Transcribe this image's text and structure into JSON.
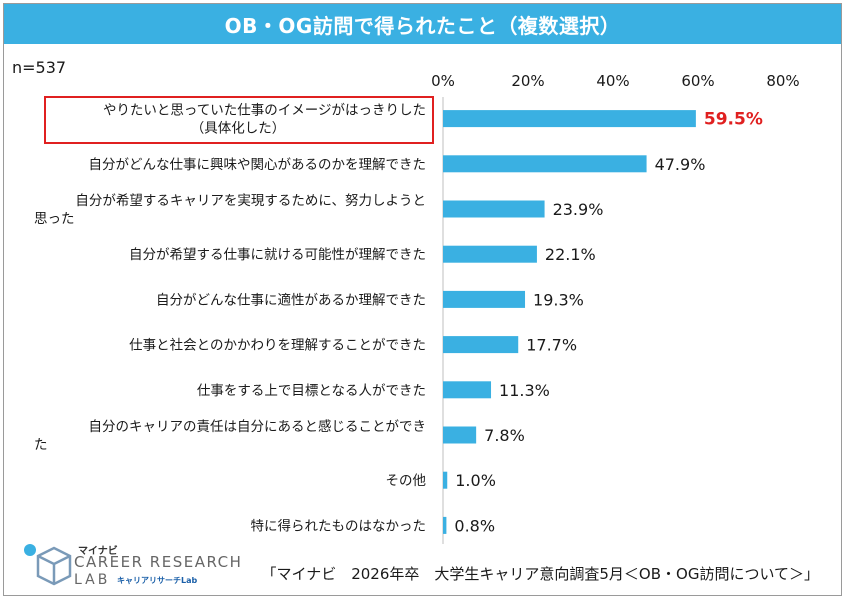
{
  "header": {
    "title": "OB・OG訪問で得られたこと（複数選択）"
  },
  "sample": {
    "label": "n=537"
  },
  "source": {
    "text": "「マイナビ　2026年卒　大学生キャリア意向調査5月＜OB・OG訪問について＞」"
  },
  "logo": {
    "brand": "マイナビ",
    "main": "CAREER RESEARCH",
    "lab": "LAB",
    "sub": "キャリアリサーチLab"
  },
  "colors": {
    "bar": "#3ab0e2",
    "highlight": "#e02020",
    "title_bg": "#3ab0e2"
  },
  "chart_data": {
    "type": "bar",
    "orientation": "horizontal",
    "title": "OB・OG訪問で得られたこと（複数選択）",
    "xlim": [
      0,
      80
    ],
    "ticks": [
      "0%",
      "20%",
      "40%",
      "60%",
      "80%"
    ],
    "tick_values": [
      0,
      20,
      40,
      60,
      80
    ],
    "unit": "%",
    "highlight_index": 0,
    "categories": [
      [
        "やりたいと思っていた仕事のイメージがはっきりした",
        "（具体化した）"
      ],
      [
        "自分がどんな仕事に興味や関心があるのかを理解できた"
      ],
      [
        "自分が希望するキャリアを実現するために、努力しようと",
        "思った"
      ],
      [
        "自分が希望する仕事に就ける可能性が理解できた"
      ],
      [
        "自分がどんな仕事に適性があるか理解できた"
      ],
      [
        "仕事と社会とのかかわりを理解することができた"
      ],
      [
        "仕事をする上で目標となる人ができた"
      ],
      [
        "自分のキャリアの責任は自分にあると感じることができ",
        "た"
      ],
      [
        "その他"
      ],
      [
        "特に得られたものはなかった"
      ]
    ],
    "values": [
      59.5,
      47.9,
      23.9,
      22.1,
      19.3,
      17.7,
      11.3,
      7.8,
      1.0,
      0.8
    ],
    "labels": [
      "59.5%",
      "47.9%",
      "23.9%",
      "22.1%",
      "19.3%",
      "17.7%",
      "11.3%",
      "7.8%",
      "1.0%",
      "0.8%"
    ]
  }
}
